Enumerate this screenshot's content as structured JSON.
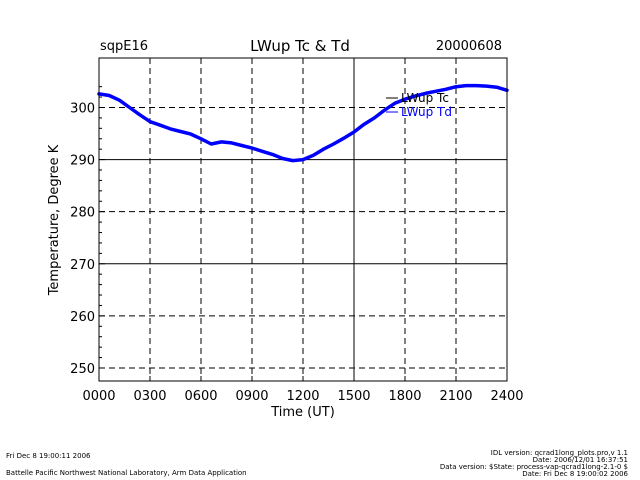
{
  "header": {
    "site": "sqpE16",
    "title": "LWup Tc & Td",
    "date": "20000608"
  },
  "footer": {
    "left_line1": "Fri Dec  8 19:00:11 2006",
    "left_line2": "Battelle Pacific Northwest National Laboratory, Arm Data Application",
    "right_line1": "IDL version: qcrad1long_plots.pro,v 1.1",
    "right_line2": "Date: 2006/12/01 16:37:51",
    "right_line3": "Data version: $State: process-vap-qcrad1long-2.1-0 $",
    "right_line4": "Date: Fri Dec  8 19:00:02 2006"
  },
  "colors": {
    "series_tc": "#000000",
    "series_td": "#0000ff",
    "grid": "#000000"
  },
  "chart_data": {
    "type": "line",
    "title": "LWup Tc & Td",
    "xlabel": "Time (UT)",
    "ylabel": "Temperature, Degree K",
    "xlim": [
      0,
      2400
    ],
    "ylim": [
      247.5,
      309.5
    ],
    "x_ticks": [
      0,
      300,
      600,
      900,
      1200,
      1500,
      1800,
      2100,
      2400
    ],
    "x_tick_labels": [
      "0000",
      "0300",
      "0600",
      "0900",
      "1200",
      "1500",
      "1800",
      "2100",
      "2400"
    ],
    "y_ticks": [
      250,
      260,
      270,
      280,
      290,
      300
    ],
    "y_tick_labels": [
      "250",
      "260",
      "270",
      "280",
      "290",
      "300"
    ],
    "grid": true,
    "legend_position": "top-right",
    "series": [
      {
        "name": "LWup Tc",
        "color": "#000000",
        "x": [
          0,
          60,
          120,
          180,
          240,
          300,
          360,
          420,
          480,
          540,
          600,
          660,
          720,
          780,
          840,
          900,
          960,
          1020,
          1080,
          1140,
          1200,
          1260,
          1320,
          1380,
          1440,
          1500,
          1560,
          1620,
          1680,
          1740,
          1800,
          1860,
          1920,
          1980,
          2040,
          2100,
          2160,
          2220,
          2280,
          2340,
          2400
        ],
        "y": [
          302.6,
          302.3,
          301.4,
          300.0,
          298.6,
          297.3,
          296.6,
          295.9,
          295.4,
          294.9,
          294.0,
          293.0,
          293.4,
          293.2,
          292.7,
          292.2,
          291.6,
          291.0,
          290.2,
          289.8,
          290.0,
          290.8,
          292.0,
          293.0,
          294.1,
          295.3,
          296.8,
          298.0,
          299.5,
          300.8,
          301.6,
          302.2,
          302.7,
          303.1,
          303.5,
          304.0,
          304.2,
          304.2,
          304.1,
          303.9,
          303.3
        ]
      },
      {
        "name": "LWup Td",
        "color": "#0000ff",
        "x": [
          0,
          60,
          120,
          180,
          240,
          300,
          360,
          420,
          480,
          540,
          600,
          660,
          720,
          780,
          840,
          900,
          960,
          1020,
          1080,
          1140,
          1200,
          1260,
          1320,
          1380,
          1440,
          1500,
          1560,
          1620,
          1680,
          1740,
          1800,
          1860,
          1920,
          1980,
          2040,
          2100,
          2160,
          2220,
          2280,
          2340,
          2400
        ],
        "y": [
          302.6,
          302.3,
          301.4,
          300.0,
          298.6,
          297.3,
          296.6,
          295.9,
          295.4,
          294.9,
          294.0,
          293.0,
          293.4,
          293.2,
          292.7,
          292.2,
          291.6,
          291.0,
          290.2,
          289.8,
          290.0,
          290.8,
          292.0,
          293.0,
          294.1,
          295.3,
          296.8,
          298.0,
          299.5,
          300.8,
          301.6,
          302.2,
          302.7,
          303.1,
          303.5,
          304.0,
          304.2,
          304.2,
          304.1,
          303.9,
          303.3
        ]
      }
    ]
  }
}
